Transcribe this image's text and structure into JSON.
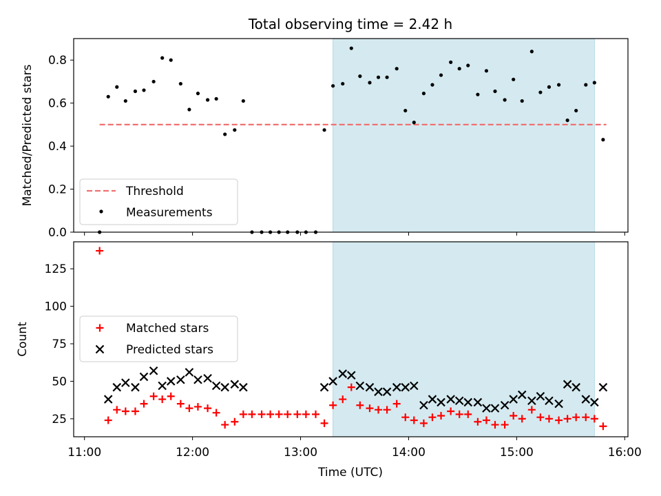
{
  "chart_data": {
    "title": "Total observing time = 2.42 h",
    "xlabel": "Time (UTC)",
    "x_ticks": [
      "11:00",
      "12:00",
      "13:00",
      "14:00",
      "15:00",
      "16:00"
    ],
    "x_range_hours": [
      10.9,
      16.03
    ],
    "highlight_region_hours": [
      13.3,
      15.72
    ],
    "highlight_color": "#d4eaf0",
    "panels": [
      {
        "type": "scatter",
        "ylabel": "Matched/Predicted stars",
        "ylim": [
          0,
          0.9
        ],
        "y_ticks": [
          "0.0",
          "0.2",
          "0.4",
          "0.6",
          "0.8"
        ],
        "threshold": {
          "name": "Threshold",
          "value": 0.5,
          "x_start": 11.14,
          "x_end": 15.83,
          "color": "#f07070"
        },
        "series": [
          {
            "name": "Measurements",
            "marker": "dot",
            "color": "#000000",
            "points": [
              [
                11.14,
                0.0
              ],
              [
                11.22,
                0.63
              ],
              [
                11.3,
                0.675
              ],
              [
                11.38,
                0.61
              ],
              [
                11.47,
                0.655
              ],
              [
                11.55,
                0.66
              ],
              [
                11.64,
                0.7
              ],
              [
                11.72,
                0.81
              ],
              [
                11.8,
                0.8
              ],
              [
                11.89,
                0.69
              ],
              [
                11.97,
                0.57
              ],
              [
                12.05,
                0.645
              ],
              [
                12.14,
                0.615
              ],
              [
                12.22,
                0.62
              ],
              [
                12.3,
                0.455
              ],
              [
                12.39,
                0.475
              ],
              [
                12.47,
                0.61
              ],
              [
                12.55,
                0.0
              ],
              [
                12.64,
                0.0
              ],
              [
                12.72,
                0.0
              ],
              [
                12.8,
                0.0
              ],
              [
                12.88,
                0.0
              ],
              [
                12.97,
                0.0
              ],
              [
                13.05,
                0.0
              ],
              [
                13.14,
                0.0
              ],
              [
                13.22,
                0.475
              ],
              [
                13.3,
                0.68
              ],
              [
                13.39,
                0.69
              ],
              [
                13.47,
                0.855
              ],
              [
                13.55,
                0.725
              ],
              [
                13.64,
                0.695
              ],
              [
                13.72,
                0.72
              ],
              [
                13.8,
                0.72
              ],
              [
                13.89,
                0.76
              ],
              [
                13.97,
                0.565
              ],
              [
                14.05,
                0.51
              ],
              [
                14.14,
                0.645
              ],
              [
                14.22,
                0.685
              ],
              [
                14.3,
                0.73
              ],
              [
                14.39,
                0.79
              ],
              [
                14.47,
                0.76
              ],
              [
                14.55,
                0.775
              ],
              [
                14.64,
                0.64
              ],
              [
                14.72,
                0.75
              ],
              [
                14.8,
                0.655
              ],
              [
                14.89,
                0.615
              ],
              [
                14.97,
                0.71
              ],
              [
                15.05,
                0.61
              ],
              [
                15.14,
                0.84
              ],
              [
                15.22,
                0.65
              ],
              [
                15.3,
                0.675
              ],
              [
                15.39,
                0.685
              ],
              [
                15.47,
                0.52
              ],
              [
                15.55,
                0.565
              ],
              [
                15.64,
                0.685
              ],
              [
                15.72,
                0.695
              ],
              [
                15.8,
                0.43
              ]
            ]
          }
        ],
        "legend": {
          "placement": "lower-left",
          "entries": [
            "Threshold",
            "Measurements"
          ]
        }
      },
      {
        "type": "scatter",
        "ylabel": "Count",
        "ylim": [
          13,
          143
        ],
        "y_ticks": [
          "25",
          "50",
          "75",
          "100",
          "125"
        ],
        "series": [
          {
            "name": "Matched stars",
            "marker": "plus",
            "color": "#ff0000",
            "points": [
              [
                11.14,
                137
              ],
              [
                11.22,
                24
              ],
              [
                11.3,
                31
              ],
              [
                11.38,
                30
              ],
              [
                11.47,
                30
              ],
              [
                11.55,
                35
              ],
              [
                11.64,
                40
              ],
              [
                11.72,
                38
              ],
              [
                11.8,
                40
              ],
              [
                11.89,
                35
              ],
              [
                11.97,
                32
              ],
              [
                12.05,
                33
              ],
              [
                12.14,
                32
              ],
              [
                12.22,
                29
              ],
              [
                12.3,
                21
              ],
              [
                12.39,
                23
              ],
              [
                12.47,
                28
              ],
              [
                12.55,
                28
              ],
              [
                12.64,
                28
              ],
              [
                12.72,
                28
              ],
              [
                12.8,
                28
              ],
              [
                12.88,
                28
              ],
              [
                12.97,
                28
              ],
              [
                13.05,
                28
              ],
              [
                13.14,
                28
              ],
              [
                13.22,
                22
              ],
              [
                13.3,
                34
              ],
              [
                13.39,
                38
              ],
              [
                13.47,
                46
              ],
              [
                13.55,
                34
              ],
              [
                13.64,
                32
              ],
              [
                13.72,
                31
              ],
              [
                13.8,
                31
              ],
              [
                13.89,
                35
              ],
              [
                13.97,
                26
              ],
              [
                14.05,
                24
              ],
              [
                14.14,
                22
              ],
              [
                14.22,
                26
              ],
              [
                14.3,
                27
              ],
              [
                14.39,
                30
              ],
              [
                14.47,
                28
              ],
              [
                14.55,
                28
              ],
              [
                14.64,
                23
              ],
              [
                14.72,
                24
              ],
              [
                14.8,
                21
              ],
              [
                14.89,
                21
              ],
              [
                14.97,
                27
              ],
              [
                15.05,
                25
              ],
              [
                15.14,
                31
              ],
              [
                15.22,
                26
              ],
              [
                15.3,
                25
              ],
              [
                15.39,
                24
              ],
              [
                15.47,
                25
              ],
              [
                15.55,
                26
              ],
              [
                15.64,
                26
              ],
              [
                15.72,
                25
              ],
              [
                15.8,
                20
              ]
            ]
          },
          {
            "name": "Predicted stars",
            "marker": "x",
            "color": "#000000",
            "points": [
              [
                11.22,
                38
              ],
              [
                11.3,
                46
              ],
              [
                11.38,
                49
              ],
              [
                11.47,
                46
              ],
              [
                11.55,
                53
              ],
              [
                11.64,
                57
              ],
              [
                11.72,
                47
              ],
              [
                11.8,
                50
              ],
              [
                11.89,
                51
              ],
              [
                11.97,
                56
              ],
              [
                12.05,
                51
              ],
              [
                12.14,
                52
              ],
              [
                12.22,
                47
              ],
              [
                12.3,
                46
              ],
              [
                12.39,
                48
              ],
              [
                12.47,
                46
              ],
              [
                13.22,
                46
              ],
              [
                13.3,
                50
              ],
              [
                13.39,
                55
              ],
              [
                13.47,
                54
              ],
              [
                13.55,
                47
              ],
              [
                13.64,
                46
              ],
              [
                13.72,
                43
              ],
              [
                13.8,
                43
              ],
              [
                13.89,
                46
              ],
              [
                13.97,
                46
              ],
              [
                14.05,
                47
              ],
              [
                14.14,
                34
              ],
              [
                14.22,
                38
              ],
              [
                14.3,
                36
              ],
              [
                14.39,
                38
              ],
              [
                14.47,
                37
              ],
              [
                14.55,
                36
              ],
              [
                14.64,
                36
              ],
              [
                14.72,
                32
              ],
              [
                14.8,
                32
              ],
              [
                14.89,
                34
              ],
              [
                14.97,
                38
              ],
              [
                15.05,
                41
              ],
              [
                15.14,
                37
              ],
              [
                15.22,
                40
              ],
              [
                15.3,
                37
              ],
              [
                15.39,
                35
              ],
              [
                15.47,
                48
              ],
              [
                15.55,
                46
              ],
              [
                15.64,
                38
              ],
              [
                15.72,
                36
              ],
              [
                15.8,
                46
              ]
            ]
          }
        ],
        "legend": {
          "placement": "center-left",
          "entries": [
            "Matched stars",
            "Predicted stars"
          ]
        }
      }
    ]
  }
}
